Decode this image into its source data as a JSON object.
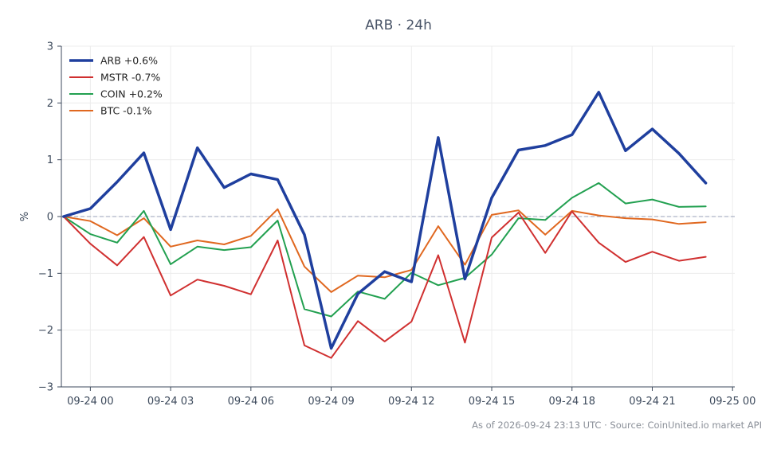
{
  "chart_data": {
    "type": "line",
    "title": "ARB · 24h",
    "ylabel": "%",
    "xlabel": "",
    "ylim": [
      -3,
      3
    ],
    "yticks": [
      -3,
      -2,
      -1,
      0,
      1,
      2,
      3
    ],
    "ytick_labels": [
      "−3",
      "−2",
      "−1",
      "0",
      "1",
      "2",
      "3"
    ],
    "xlim": [
      "2026-09-23T22:55",
      "2026-09-25T00:05"
    ],
    "xticks": [
      "2026-09-24T00:00",
      "2026-09-24T03:00",
      "2026-09-24T06:00",
      "2026-09-24T09:00",
      "2026-09-24T12:00",
      "2026-09-24T15:00",
      "2026-09-24T18:00",
      "2026-09-24T21:00",
      "2026-09-25T00:00"
    ],
    "xtick_labels": [
      "09-24 00",
      "09-24 03",
      "09-24 06",
      "09-24 09",
      "09-24 12",
      "09-24 15",
      "09-24 18",
      "09-24 21",
      "09-25 00"
    ],
    "zero_line": true,
    "grid": true,
    "legend_position": "top-left",
    "x": [
      "2026-09-23T23:00",
      "2026-09-24T00:00",
      "2026-09-24T01:00",
      "2026-09-24T02:00",
      "2026-09-24T03:00",
      "2026-09-24T04:00",
      "2026-09-24T05:00",
      "2026-09-24T06:00",
      "2026-09-24T07:00",
      "2026-09-24T08:00",
      "2026-09-24T09:00",
      "2026-09-24T10:00",
      "2026-09-24T11:00",
      "2026-09-24T12:00",
      "2026-09-24T13:00",
      "2026-09-24T14:00",
      "2026-09-24T15:00",
      "2026-09-24T16:00",
      "2026-09-24T17:00",
      "2026-09-24T18:00",
      "2026-09-24T19:00",
      "2026-09-24T20:00",
      "2026-09-24T21:00",
      "2026-09-24T22:00",
      "2026-09-24T23:00"
    ],
    "series": [
      {
        "name": "ARB +0.6%",
        "color": "#1f3f9e",
        "width": 3.5,
        "values": [
          0.0,
          0.14,
          0.61,
          1.12,
          -0.23,
          1.21,
          0.51,
          0.75,
          0.65,
          -0.32,
          -2.32,
          -1.36,
          -0.97,
          -1.15,
          1.39,
          -1.1,
          0.33,
          1.17,
          1.25,
          1.44,
          2.19,
          1.16,
          1.54,
          1.11,
          0.59
        ]
      },
      {
        "name": "MSTR -0.7%",
        "color": "#d03030",
        "width": 2,
        "values": [
          0.0,
          -0.48,
          -0.86,
          -0.36,
          -1.39,
          -1.11,
          -1.22,
          -1.37,
          -0.42,
          -2.27,
          -2.49,
          -1.84,
          -2.2,
          -1.85,
          -0.68,
          -2.22,
          -0.37,
          0.07,
          -0.64,
          0.09,
          -0.46,
          -0.8,
          -0.62,
          -0.78,
          -0.71
        ]
      },
      {
        "name": "COIN +0.2%",
        "color": "#22a050",
        "width": 2,
        "values": [
          0.0,
          -0.31,
          -0.46,
          0.1,
          -0.84,
          -0.53,
          -0.59,
          -0.54,
          -0.07,
          -1.63,
          -1.76,
          -1.32,
          -1.45,
          -0.99,
          -1.21,
          -1.08,
          -0.67,
          -0.03,
          -0.06,
          0.33,
          0.59,
          0.23,
          0.3,
          0.17,
          0.18
        ]
      },
      {
        "name": "BTC -0.1%",
        "color": "#e06820",
        "width": 2,
        "values": [
          0.0,
          -0.08,
          -0.33,
          -0.03,
          -0.53,
          -0.42,
          -0.49,
          -0.34,
          0.13,
          -0.88,
          -1.33,
          -1.04,
          -1.07,
          -0.94,
          -0.17,
          -0.85,
          0.03,
          0.11,
          -0.32,
          0.1,
          0.02,
          -0.03,
          -0.05,
          -0.13,
          -0.1
        ]
      }
    ]
  },
  "footer": "As of 2026-09-24 23:13 UTC · Source: CoinUnited.io market API"
}
